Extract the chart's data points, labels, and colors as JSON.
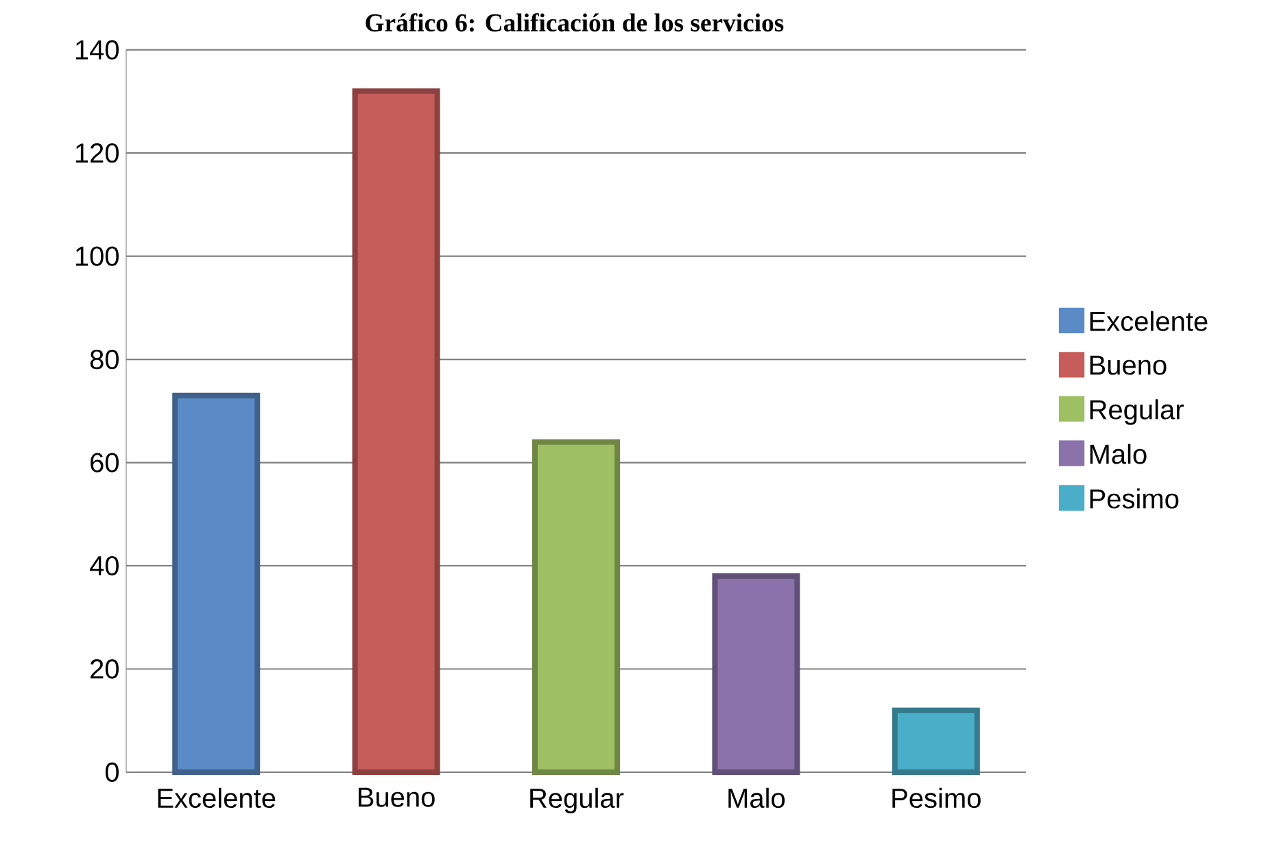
{
  "chart_data": {
    "type": "bar",
    "title": "Gráfico 6: Calificación de los servicios",
    "categories": [
      "Excelente",
      "Bueno",
      "Regular",
      "Malo",
      "Pesimo"
    ],
    "series": [
      {
        "name": "Excelente",
        "color": "#5b8bc6",
        "values": [
          73,
          null,
          null,
          null,
          null
        ]
      },
      {
        "name": "Bueno",
        "color": "#c65d5a",
        "values": [
          null,
          132,
          null,
          null,
          null
        ]
      },
      {
        "name": "Regular",
        "color": "#9fbf63",
        "values": [
          null,
          null,
          64,
          null,
          null
        ]
      },
      {
        "name": "Malo",
        "color": "#8b72ab",
        "values": [
          null,
          null,
          null,
          38,
          null
        ]
      },
      {
        "name": "Pesimo",
        "color": "#4aaec8",
        "values": [
          null,
          null,
          null,
          null,
          12
        ]
      }
    ],
    "ylim": [
      0,
      140
    ],
    "yticks": [
      0,
      20,
      40,
      60,
      80,
      100,
      120,
      140
    ],
    "grid": "y",
    "legend": "right"
  }
}
